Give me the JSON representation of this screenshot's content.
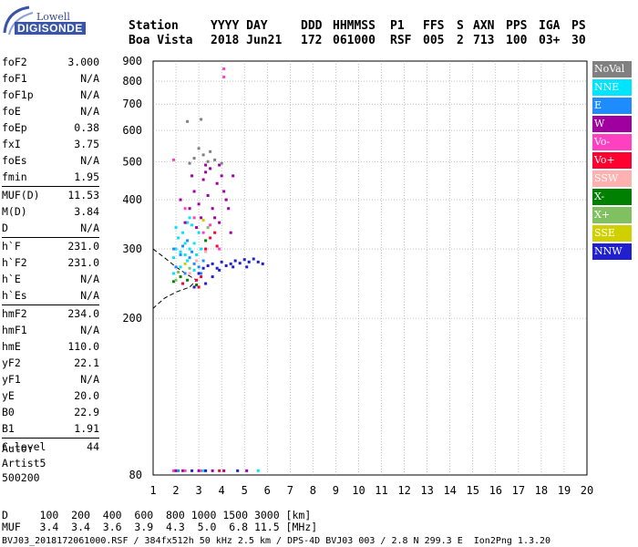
{
  "logo": {
    "line1": "Lowell",
    "line2": "DIGISONDE"
  },
  "header": {
    "row1": [
      "Station",
      "YYYY DAY",
      "DDD",
      "HHMMSS",
      "P1",
      "FFS",
      "S",
      "AXN",
      "PPS",
      "IGA",
      "PS"
    ],
    "row2": [
      "Boa Vista",
      "2018 Jun21",
      "172",
      "061000",
      "RSF",
      "005",
      "2",
      "713",
      "100",
      "03+",
      "30"
    ]
  },
  "params": {
    "group1": [
      {
        "k": "foF2",
        "v": "3.000"
      },
      {
        "k": "foF1",
        "v": "N/A"
      },
      {
        "k": "foF1p",
        "v": "N/A"
      },
      {
        "k": "foE",
        "v": "N/A"
      },
      {
        "k": "foEp",
        "v": "0.38"
      },
      {
        "k": "fxI",
        "v": "3.75"
      },
      {
        "k": "foEs",
        "v": "N/A"
      },
      {
        "k": "fmin",
        "v": "1.95"
      }
    ],
    "group2": [
      {
        "k": "MUF(D)",
        "v": "11.53"
      },
      {
        "k": "M(D)",
        "v": "3.84"
      },
      {
        "k": "D",
        "v": "N/A"
      }
    ],
    "group3": [
      {
        "k": "h`F",
        "v": "231.0"
      },
      {
        "k": "h`F2",
        "v": "231.0"
      },
      {
        "k": "h`E",
        "v": "N/A"
      },
      {
        "k": "h`Es",
        "v": "N/A"
      }
    ],
    "group4": [
      {
        "k": "hmF2",
        "v": "234.0"
      },
      {
        "k": "hmF1",
        "v": "N/A"
      },
      {
        "k": "hmE",
        "v": "110.0"
      },
      {
        "k": "yF2",
        "v": "22.1"
      },
      {
        "k": "yF1",
        "v": "N/A"
      },
      {
        "k": "yE",
        "v": "20.0"
      },
      {
        "k": "B0",
        "v": "22.9"
      },
      {
        "k": "B1",
        "v": "1.91"
      }
    ],
    "group5": [
      {
        "k": "C-level",
        "v": "44"
      }
    ]
  },
  "auto": {
    "line1": "Auto:",
    "line2": "Artist5",
    "line3": "500200"
  },
  "legend": [
    {
      "label": "NoVal",
      "color": "#808080"
    },
    {
      "label": "NNE",
      "color": "#00e5ff"
    },
    {
      "label": "E",
      "color": "#1e8cff"
    },
    {
      "label": "W",
      "color": "#a000a0"
    },
    {
      "label": "Vo-",
      "color": "#ff40c0"
    },
    {
      "label": "Vo+",
      "color": "#ff0030"
    },
    {
      "label": "SSW",
      "color": "#ffb0b0"
    },
    {
      "label": "X-",
      "color": "#008000"
    },
    {
      "label": "X+",
      "color": "#80c060"
    },
    {
      "label": "SSE",
      "color": "#d0d000"
    },
    {
      "label": "NNW",
      "color": "#2020d0"
    }
  ],
  "bottom": {
    "d_row": "D     100  200  400  600  800 1000 1500 3000 [km]",
    "muf_row": "MUF   3.4  3.4  3.6  3.9  4.3  5.0  6.8 11.5 [MHz]",
    "footer": "BVJ03_2018172061000.RSF / 384fx512h 50 kHz 2.5 km / DPS-4D BVJ03 003 / 2.8 N 299.3 E  Ion2Png 1.3.20"
  },
  "chart_data": {
    "type": "scatter",
    "title": "",
    "xlabel": "",
    "ylabel": "",
    "xlim": [
      1,
      20
    ],
    "ylim": [
      80,
      900
    ],
    "x_ticks": [
      1,
      2,
      3,
      4,
      5,
      6,
      7,
      8,
      9,
      10,
      11,
      12,
      13,
      14,
      15,
      16,
      17,
      18,
      19,
      20
    ],
    "y_ticks": [
      80,
      200,
      300,
      400,
      500,
      600,
      700,
      800,
      900
    ],
    "y_scale": "log",
    "grid": "dotted",
    "legend_position": "right",
    "series": [
      {
        "name": "NNE",
        "color": "#00e5ff",
        "points": [
          [
            1.9,
            285
          ],
          [
            2.0,
            300
          ],
          [
            2.1,
            320
          ],
          [
            2.2,
            295
          ],
          [
            2.3,
            330
          ],
          [
            2.4,
            310
          ],
          [
            2.5,
            280
          ],
          [
            2.6,
            300
          ],
          [
            2.7,
            345
          ],
          [
            2.8,
            310
          ],
          [
            2.9,
            290
          ],
          [
            3.0,
            330
          ],
          [
            2.2,
            270
          ],
          [
            2.5,
            350
          ],
          [
            1.9,
            260
          ],
          [
            2.8,
            265
          ],
          [
            2.0,
            340
          ],
          [
            2.6,
            360
          ],
          [
            2.4,
            290
          ],
          [
            3.1,
            300
          ]
        ]
      },
      {
        "name": "E",
        "color": "#1e8cff",
        "points": [
          [
            2.0,
            270
          ],
          [
            2.2,
            290
          ],
          [
            2.4,
            260
          ],
          [
            2.6,
            285
          ],
          [
            2.8,
            275
          ],
          [
            3.0,
            270
          ],
          [
            3.2,
            280
          ],
          [
            2.3,
            305
          ],
          [
            2.7,
            295
          ],
          [
            1.9,
            300
          ],
          [
            3.1,
            260
          ],
          [
            2.5,
            315
          ]
        ]
      },
      {
        "name": "W",
        "color": "#a000a0",
        "points": [
          [
            2.4,
            350
          ],
          [
            2.6,
            380
          ],
          [
            2.8,
            420
          ],
          [
            3.0,
            390
          ],
          [
            3.2,
            450
          ],
          [
            3.4,
            410
          ],
          [
            3.6,
            380
          ],
          [
            3.8,
            440
          ],
          [
            4.0,
            460
          ],
          [
            4.2,
            400
          ],
          [
            3.3,
            470
          ],
          [
            3.5,
            480
          ],
          [
            3.7,
            360
          ],
          [
            3.9,
            350
          ],
          [
            4.1,
            420
          ],
          [
            4.3,
            380
          ],
          [
            4.5,
            460
          ],
          [
            2.9,
            340
          ],
          [
            3.1,
            360
          ],
          [
            2.2,
            400
          ],
          [
            2.7,
            460
          ],
          [
            3.3,
            490
          ],
          [
            4.4,
            330
          ],
          [
            3.9,
            490
          ]
        ]
      },
      {
        "name": "Vo-",
        "color": "#ff40c0",
        "points": [
          [
            1.9,
            505
          ],
          [
            4.1,
            860
          ],
          [
            4.1,
            820
          ],
          [
            2.4,
            380
          ],
          [
            2.8,
            360
          ],
          [
            3.2,
            330
          ],
          [
            3.5,
            345
          ],
          [
            3.9,
            300
          ]
        ]
      },
      {
        "name": "Vo+",
        "color": "#ff0030",
        "points": [
          [
            3.5,
            320
          ],
          [
            3.7,
            330
          ],
          [
            3.3,
            300
          ],
          [
            3.1,
            255
          ],
          [
            2.9,
            250
          ],
          [
            3.8,
            305
          ],
          [
            2.3,
            245
          ],
          [
            3.0,
            240
          ]
        ]
      },
      {
        "name": "SSW",
        "color": "#ffb0b0",
        "points": [
          [
            2.6,
            260
          ],
          [
            2.9,
            280
          ],
          [
            3.3,
            295
          ]
        ]
      },
      {
        "name": "X-",
        "color": "#008000",
        "points": [
          [
            1.9,
            248
          ],
          [
            2.2,
            255
          ],
          [
            2.5,
            250
          ],
          [
            3.3,
            315
          ],
          [
            2.9,
            243
          ]
        ]
      },
      {
        "name": "X+",
        "color": "#80c060",
        "points": [
          [
            2.1,
            262
          ],
          [
            2.6,
            268
          ],
          [
            3.4,
            340
          ],
          [
            2.0,
            250
          ]
        ]
      },
      {
        "name": "SSE",
        "color": "#d0d000",
        "points": [
          [
            2.4,
            275
          ],
          [
            3.2,
            355
          ]
        ]
      },
      {
        "name": "NNW",
        "color": "#2020d0",
        "points": [
          [
            3.0,
            260
          ],
          [
            3.2,
            268
          ],
          [
            3.4,
            272
          ],
          [
            3.6,
            275
          ],
          [
            3.8,
            268
          ],
          [
            4.0,
            278
          ],
          [
            4.2,
            272
          ],
          [
            4.4,
            275
          ],
          [
            4.6,
            280
          ],
          [
            4.8,
            276
          ],
          [
            5.0,
            282
          ],
          [
            5.2,
            278
          ],
          [
            5.4,
            283
          ],
          [
            5.6,
            278
          ],
          [
            5.8,
            275
          ],
          [
            3.3,
            245
          ],
          [
            3.6,
            255
          ],
          [
            2.8,
            240
          ],
          [
            3.9,
            265
          ],
          [
            4.5,
            270
          ],
          [
            5.1,
            270
          ]
        ]
      },
      {
        "name": "NoVal",
        "color": "#808080",
        "points": [
          [
            3.0,
            540
          ],
          [
            3.2,
            520
          ],
          [
            2.8,
            510
          ],
          [
            3.4,
            500
          ],
          [
            3.7,
            505
          ],
          [
            4.0,
            495
          ],
          [
            2.6,
            495
          ],
          [
            3.5,
            530
          ],
          [
            3.1,
            640
          ],
          [
            2.5,
            632
          ]
        ]
      }
    ],
    "trace_curve": [
      [
        1,
        300
      ],
      [
        1.5,
        285
      ],
      [
        2,
        270
      ],
      [
        2.5,
        258
      ],
      [
        2.9,
        250
      ],
      [
        2.6,
        240
      ],
      [
        2.0,
        233
      ],
      [
        1.5,
        225
      ],
      [
        1,
        212
      ]
    ],
    "baseline_markers": [
      [
        1.9,
        "#ff40c0"
      ],
      [
        2.0,
        "#a000a0"
      ],
      [
        2.1,
        "#1e8cff"
      ],
      [
        2.3,
        "#a000a0"
      ],
      [
        2.4,
        "#ff40c0"
      ],
      [
        2.7,
        "#2020d0"
      ],
      [
        3.0,
        "#a000a0"
      ],
      [
        3.1,
        "#ff40c0"
      ],
      [
        3.2,
        "#00e5ff"
      ],
      [
        3.3,
        "#2020d0"
      ],
      [
        3.6,
        "#a000a0"
      ],
      [
        3.9,
        "#ff0030"
      ],
      [
        4.1,
        "#a000a0"
      ],
      [
        4.7,
        "#2020d0"
      ],
      [
        5.1,
        "#a000a0"
      ],
      [
        5.6,
        "#00e5ff"
      ]
    ]
  }
}
